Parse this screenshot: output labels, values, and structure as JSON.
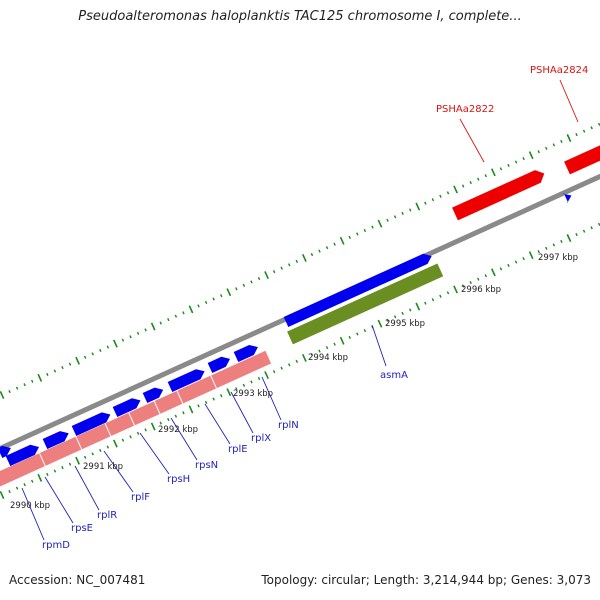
{
  "title": "Pseudoalteromonas haloplanktis TAC125 chromosome I, complete...",
  "footer": {
    "accession": "Accession: NC_007481",
    "summary": "Topology: circular; Length: 3,214,944 bp; Genes: 3,073"
  },
  "colors": {
    "backbone": "#8a8a8a",
    "cds_forward": "#0000ee",
    "cds_reverse_pink": "#ee7f7f",
    "cds_reverse_green": "#6b8e23",
    "rna": "#ee0000",
    "tick": "#1a8a1a",
    "gene_label": "#2222bb",
    "rna_label": "#dd1111"
  },
  "scale_ticks": [
    "2990 kbp",
    "2991 kbp",
    "2992 kbp",
    "2993 kbp",
    "2994 kbp",
    "2995 kbp",
    "2996 kbp",
    "2997 kbp"
  ],
  "gene_labels": [
    "rpmD",
    "rpsE",
    "rplR",
    "rplF",
    "rpsH",
    "rpsN",
    "rplE",
    "rplX",
    "rplN",
    "asmA"
  ],
  "rna_labels": [
    "PSHAa2822",
    "PSHAa2824"
  ]
}
